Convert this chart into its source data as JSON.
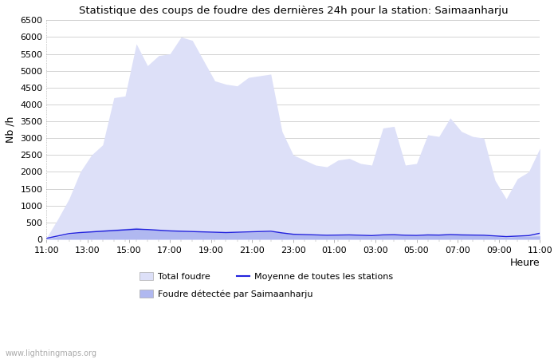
{
  "title": "Statistique des coups de foudre des dernières 24h pour la station: Saimaanharju",
  "xlabel": "Heure",
  "ylabel": "Nb /h",
  "ylim": [
    0,
    6500
  ],
  "yticks": [
    0,
    500,
    1000,
    1500,
    2000,
    2500,
    3000,
    3500,
    4000,
    4500,
    5000,
    5500,
    6000,
    6500
  ],
  "x_labels": [
    "11:00",
    "13:00",
    "15:00",
    "17:00",
    "19:00",
    "21:00",
    "23:00",
    "01:00",
    "03:00",
    "05:00",
    "07:00",
    "09:00",
    "11:00"
  ],
  "watermark": "www.lightningmaps.org",
  "total_foudre_color": "#dde0f8",
  "local_foudre_color": "#b0b8f0",
  "mean_line_color": "#2222dd",
  "background_color": "#ffffff",
  "grid_color": "#cccccc",
  "total_foudre": [
    50,
    600,
    1200,
    2000,
    2500,
    2800,
    4200,
    4250,
    5800,
    5150,
    5450,
    5500,
    6000,
    5900,
    5300,
    4700,
    4600,
    4550,
    4800,
    4850,
    4900,
    3200,
    2500,
    2350,
    2200,
    2150,
    2350,
    2400,
    2250,
    2200,
    3300,
    3350,
    2200,
    2250,
    3100,
    3050,
    3600,
    3200,
    3050,
    3000,
    1750,
    1200,
    1800,
    2000,
    2700
  ],
  "local_foudre": [
    10,
    80,
    150,
    200,
    250,
    280,
    300,
    320,
    350,
    300,
    280,
    260,
    250,
    230,
    220,
    210,
    200,
    200,
    210,
    220,
    230,
    200,
    150,
    130,
    120,
    110,
    115,
    120,
    110,
    100,
    120,
    125,
    110,
    105,
    130,
    125,
    140,
    130,
    120,
    115,
    85,
    60,
    80,
    90,
    100
  ],
  "mean_line": [
    30,
    100,
    170,
    200,
    220,
    240,
    260,
    280,
    300,
    290,
    270,
    250,
    240,
    230,
    220,
    210,
    200,
    210,
    220,
    230,
    240,
    190,
    150,
    140,
    130,
    120,
    125,
    130,
    120,
    110,
    130,
    135,
    120,
    115,
    130,
    125,
    140,
    130,
    125,
    120,
    100,
    80,
    95,
    110,
    180
  ],
  "n_points": 45,
  "figwidth": 7.0,
  "figheight": 4.5,
  "dpi": 100
}
